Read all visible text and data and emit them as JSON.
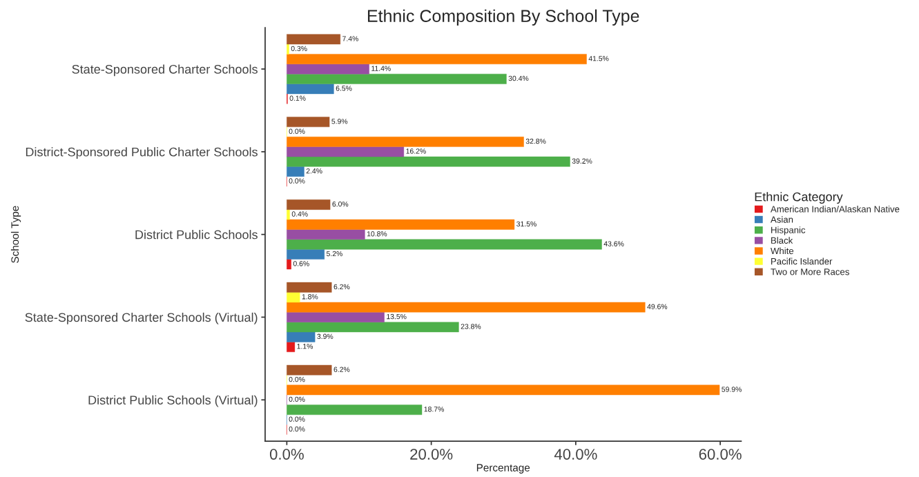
{
  "chart_data": {
    "type": "bar",
    "orientation": "horizontal",
    "title": "Ethnic Composition By School Type",
    "xlabel": "Percentage",
    "ylabel": "School Type",
    "legend_title": "Ethnic Category",
    "legend": "right",
    "grid": false,
    "categories": [
      "State-Sponsored Charter Schools",
      "District-Sponsored Public Charter Schools",
      "District Public Schools",
      "State-Sponsored Charter Schools (Virtual)",
      "District Public Schools (Virtual)"
    ],
    "xlim": [
      -3,
      62.9
    ],
    "xticks": [
      {
        "value": 0,
        "label": "0.0%"
      },
      {
        "value": 20,
        "label": "20.0%"
      },
      {
        "value": 40,
        "label": "40.0%"
      },
      {
        "value": 60,
        "label": "60.0%"
      }
    ],
    "series": [
      {
        "name": "American Indian/Alaskan Native",
        "color": "#e41a1c",
        "values": [
          0.1,
          0.0,
          0.6,
          1.1,
          0.0
        ],
        "value_labels": [
          "0.1%",
          "0.0%",
          "0.6%",
          "1.1%",
          "0.0%"
        ]
      },
      {
        "name": "Asian",
        "color": "#377eb8",
        "values": [
          6.5,
          2.4,
          5.2,
          3.9,
          0.0
        ],
        "value_labels": [
          "6.5%",
          "2.4%",
          "5.2%",
          "3.9%",
          "0.0%"
        ]
      },
      {
        "name": "Hispanic",
        "color": "#4daf4a",
        "values": [
          30.4,
          39.2,
          43.6,
          23.8,
          18.7
        ],
        "value_labels": [
          "30.4%",
          "39.2%",
          "43.6%",
          "23.8%",
          "18.7%"
        ]
      },
      {
        "name": "Black",
        "color": "#984ea3",
        "values": [
          11.4,
          16.2,
          10.8,
          13.5,
          0.0
        ],
        "value_labels": [
          "11.4%",
          "16.2%",
          "10.8%",
          "13.5%",
          "0.0%"
        ]
      },
      {
        "name": "White",
        "color": "#ff7f00",
        "values": [
          41.5,
          32.8,
          31.5,
          49.6,
          59.9
        ],
        "value_labels": [
          "41.5%",
          "32.8%",
          "31.5%",
          "49.6%",
          "59.9%"
        ]
      },
      {
        "name": "Pacific Islander",
        "color": "#ffff33",
        "values": [
          0.3,
          0.0,
          0.4,
          1.8,
          0.0
        ],
        "value_labels": [
          "0.3%",
          "0.0%",
          "0.4%",
          "1.8%",
          "0.0%"
        ]
      },
      {
        "name": "Two or More Races",
        "color": "#a65628",
        "values": [
          7.4,
          5.9,
          6.0,
          6.2,
          6.2
        ],
        "value_labels": [
          "7.4%",
          "5.9%",
          "6.0%",
          "6.2%",
          "6.2%"
        ]
      }
    ]
  }
}
